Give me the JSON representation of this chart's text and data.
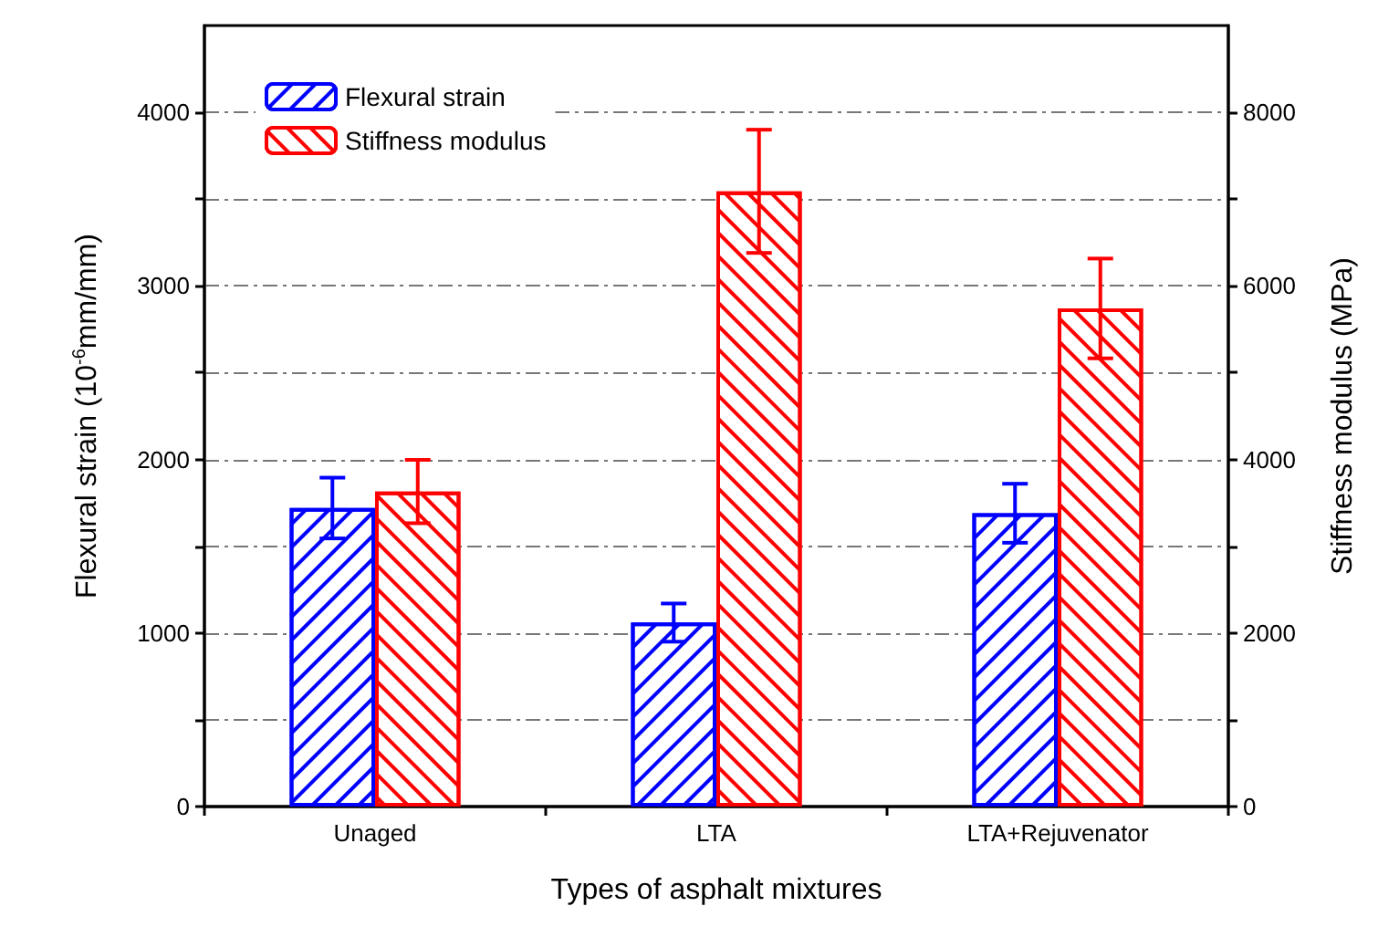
{
  "chart_data": {
    "type": "bar",
    "xlabel": "Types of asphalt mixtures",
    "ylabel": "Flexural strain (10$^{-6}$mm/mm)",
    "y2label": "Stiffness modulus (MPa)",
    "categories": [
      "Unaged",
      "LTA",
      "LTA+Rejuvenator"
    ],
    "series": [
      {
        "name": "Flexural strain",
        "color": "#0000ff",
        "values": [
          1720,
          1060,
          1690
        ],
        "errors": [
          175,
          110,
          170
        ]
      },
      {
        "name": "Stiffness modulus",
        "color": "#ff0000",
        "axis": "y2",
        "values": [
          3630,
          7090,
          5740
        ],
        "errors": [
          365,
          710,
          575
        ]
      }
    ],
    "ylim": [
      0,
      4500
    ],
    "yticks": [
      0,
      {
        "value": 500,
        "label": null
      },
      1000,
      {
        "value": 1500,
        "label": null
      },
      2000,
      {
        "value": 2500,
        "label": null
      },
      3000,
      {
        "value": 3500,
        "label": null
      },
      4000
    ],
    "y2lim": [
      0,
      9000
    ],
    "y2ticks": [
      0,
      {
        "value": 1000,
        "label": null
      },
      2000,
      {
        "value": 3000,
        "label": null
      },
      4000,
      {
        "value": 5000,
        "label": null
      },
      6000,
      {
        "value": 7000,
        "label": null
      },
      8000
    ],
    "grid": "y",
    "legend": "top left"
  }
}
